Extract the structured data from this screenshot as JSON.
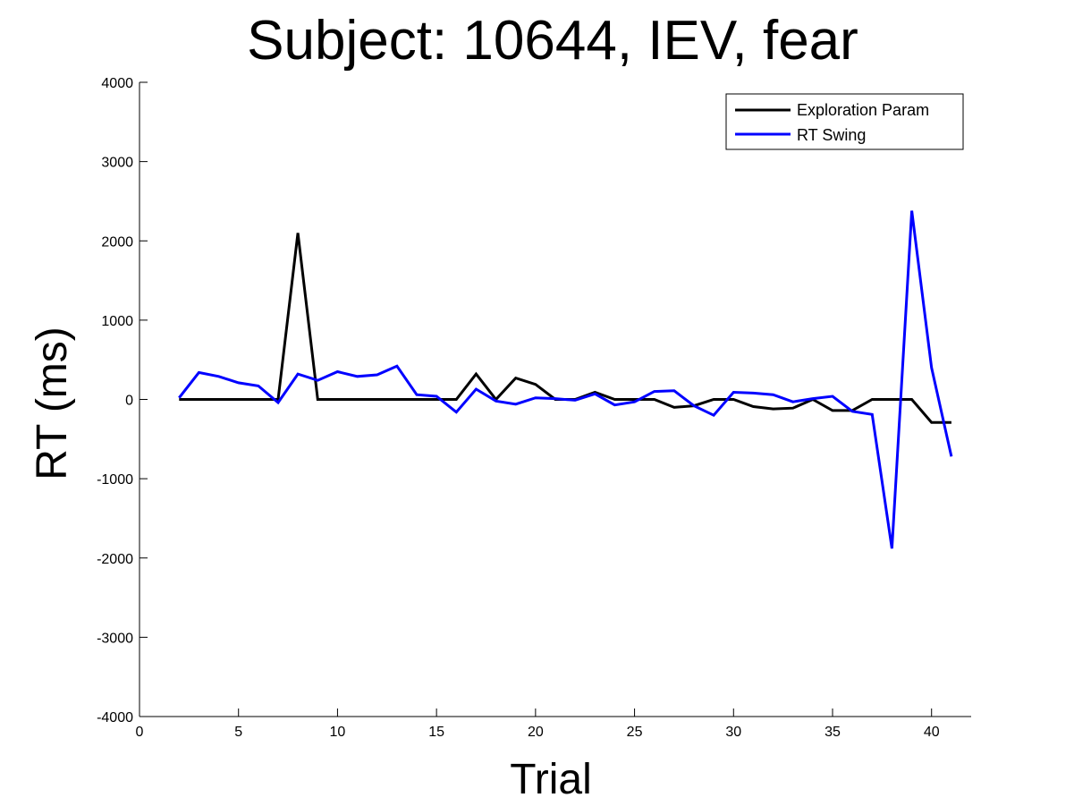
{
  "chart_data": {
    "type": "line",
    "title": "Subject: 10644, IEV, fear",
    "xlabel": "Trial",
    "ylabel": "RT (ms)",
    "xlim": [
      0,
      42
    ],
    "ylim": [
      -4000,
      4000
    ],
    "xticks": [
      0,
      5,
      10,
      15,
      20,
      25,
      30,
      35,
      40
    ],
    "yticks": [
      -4000,
      -3000,
      -2000,
      -1000,
      0,
      1000,
      2000,
      3000,
      4000
    ],
    "grid": false,
    "legend_position": "top-right",
    "x": [
      2,
      3,
      4,
      5,
      6,
      7,
      8,
      9,
      10,
      11,
      12,
      13,
      14,
      15,
      16,
      17,
      18,
      19,
      20,
      21,
      22,
      23,
      24,
      25,
      26,
      27,
      28,
      29,
      30,
      31,
      32,
      33,
      34,
      35,
      36,
      37,
      38,
      39,
      40,
      41
    ],
    "series": [
      {
        "name": "Exploration Param",
        "color": "#000000",
        "values": [
          0,
          0,
          0,
          0,
          0,
          0,
          2100,
          0,
          0,
          0,
          0,
          0,
          0,
          0,
          0,
          320,
          0,
          270,
          190,
          0,
          0,
          90,
          0,
          0,
          0,
          -100,
          -80,
          0,
          0,
          -90,
          -120,
          -110,
          0,
          -140,
          -140,
          0,
          0,
          0,
          -290,
          -290
        ]
      },
      {
        "name": "RT Swing",
        "color": "#0000ff",
        "values": [
          20,
          340,
          290,
          210,
          170,
          -40,
          320,
          240,
          350,
          290,
          310,
          420,
          60,
          40,
          -160,
          130,
          -20,
          -60,
          20,
          10,
          -10,
          70,
          -70,
          -30,
          100,
          110,
          -80,
          -200,
          90,
          80,
          60,
          -30,
          10,
          40,
          -150,
          -190,
          -1880,
          2380,
          400,
          -720
        ]
      }
    ]
  }
}
